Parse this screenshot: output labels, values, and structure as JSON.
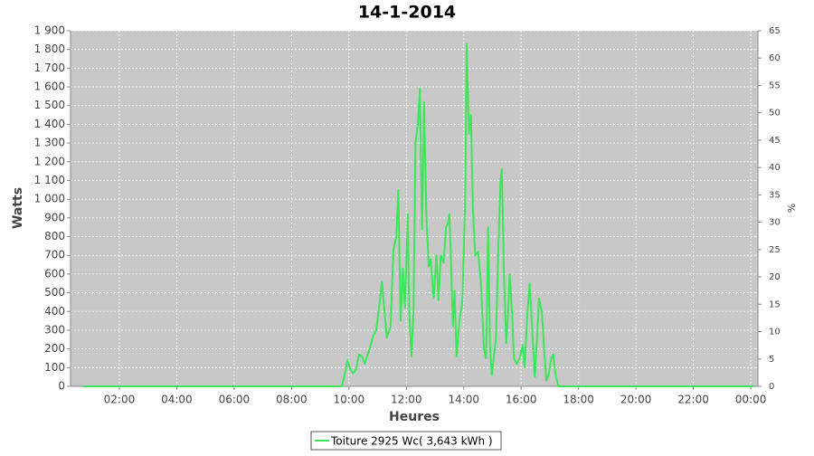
{
  "chart_data": {
    "type": "line",
    "title": "14-1-2014",
    "xlabel": "Heures",
    "ylabel": "Watts",
    "y2label": "%",
    "xlim": [
      0.3,
      24.25
    ],
    "xticks": [
      {
        "value": 2,
        "label": "02:00"
      },
      {
        "value": 4,
        "label": "04:00"
      },
      {
        "value": 6,
        "label": "06:00"
      },
      {
        "value": 8,
        "label": "08:00"
      },
      {
        "value": 10,
        "label": "10:00"
      },
      {
        "value": 12,
        "label": "12:00"
      },
      {
        "value": 14,
        "label": "14:00"
      },
      {
        "value": 16,
        "label": "16:00"
      },
      {
        "value": 18,
        "label": "18:00"
      },
      {
        "value": 20,
        "label": "20:00"
      },
      {
        "value": 22,
        "label": "22:00"
      },
      {
        "value": 24,
        "label": "00:00"
      }
    ],
    "ylim": [
      0,
      1900
    ],
    "yticks": [
      0,
      100,
      200,
      300,
      400,
      500,
      600,
      700,
      800,
      900,
      {
        "value": 1000,
        "label": "1 000"
      },
      {
        "value": 1100,
        "label": "1 100"
      },
      {
        "value": 1200,
        "label": "1 200"
      },
      {
        "value": 1300,
        "label": "1 300"
      },
      {
        "value": 1400,
        "label": "1 400"
      },
      {
        "value": 1500,
        "label": "1 500"
      },
      {
        "value": 1600,
        "label": "1 600"
      },
      {
        "value": 1700,
        "label": "1 700"
      },
      {
        "value": 1800,
        "label": "1 800"
      },
      {
        "value": 1900,
        "label": "1 900"
      }
    ],
    "y2lim": [
      0,
      65
    ],
    "y2ticks": [
      0,
      5,
      10,
      15,
      20,
      25,
      30,
      35,
      40,
      45,
      50,
      55,
      60,
      65
    ],
    "grid": true,
    "series": [
      {
        "name": "Toiture 2925 Wc( 3,643 kWh )",
        "color": "#3ce65a",
        "x": [
          0.75,
          9.75,
          9.85,
          9.95,
          10.05,
          10.15,
          10.25,
          10.35,
          10.45,
          10.55,
          10.7,
          10.85,
          10.95,
          11.05,
          11.15,
          11.25,
          11.32,
          11.45,
          11.55,
          11.65,
          11.72,
          11.8,
          11.88,
          11.95,
          12.05,
          12.1,
          12.18,
          12.25,
          12.32,
          12.4,
          12.47,
          12.55,
          12.62,
          12.7,
          12.78,
          12.85,
          12.95,
          13.05,
          13.12,
          13.2,
          13.3,
          13.38,
          13.45,
          13.5,
          13.55,
          13.62,
          13.68,
          13.75,
          13.85,
          13.95,
          14.05,
          14.1,
          14.18,
          14.25,
          14.32,
          14.4,
          14.5,
          14.6,
          14.7,
          14.78,
          14.85,
          14.92,
          14.98,
          15.05,
          15.12,
          15.2,
          15.28,
          15.33,
          15.4,
          15.48,
          15.55,
          15.6,
          15.68,
          15.75,
          15.85,
          15.95,
          16.05,
          16.12,
          16.22,
          16.3,
          16.4,
          16.48,
          16.55,
          16.62,
          16.72,
          16.8,
          16.88,
          16.95,
          17.05,
          17.12,
          17.2,
          17.3,
          24.1
        ],
        "values": [
          0,
          0,
          60,
          140,
          90,
          70,
          90,
          170,
          160,
          120,
          190,
          270,
          300,
          420,
          560,
          380,
          260,
          320,
          730,
          800,
          1050,
          350,
          630,
          420,
          920,
          400,
          160,
          400,
          1300,
          1400,
          1590,
          840,
          1520,
          900,
          640,
          680,
          470,
          700,
          460,
          700,
          660,
          850,
          870,
          920,
          700,
          320,
          510,
          160,
          350,
          450,
          1000,
          1830,
          1350,
          1450,
          950,
          700,
          720,
          550,
          200,
          150,
          850,
          200,
          60,
          160,
          250,
          700,
          1100,
          1160,
          600,
          230,
          400,
          600,
          400,
          150,
          120,
          150,
          220,
          100,
          400,
          550,
          260,
          50,
          250,
          470,
          400,
          200,
          30,
          60,
          150,
          170,
          60,
          0,
          0
        ]
      }
    ]
  }
}
